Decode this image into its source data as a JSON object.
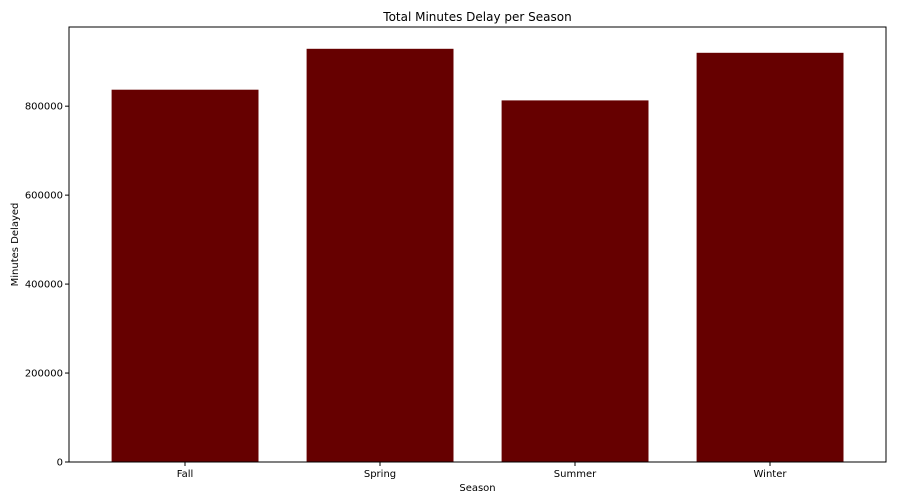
{
  "chart_data": {
    "type": "bar",
    "title": "Total Minutes Delay per Season",
    "xlabel": "Season",
    "ylabel": "Minutes Delayed",
    "categories": [
      "Fall",
      "Spring",
      "Summer",
      "Winter"
    ],
    "values": [
      837000,
      929000,
      813000,
      920000
    ],
    "ylim": [
      0,
      978000
    ],
    "yticks": [
      0,
      200000,
      400000,
      600000,
      800000
    ],
    "ytick_labels": [
      "0",
      "200000",
      "400000",
      "600000",
      "800000"
    ],
    "bar_color": "#660000",
    "grid": false,
    "legend": "none"
  }
}
